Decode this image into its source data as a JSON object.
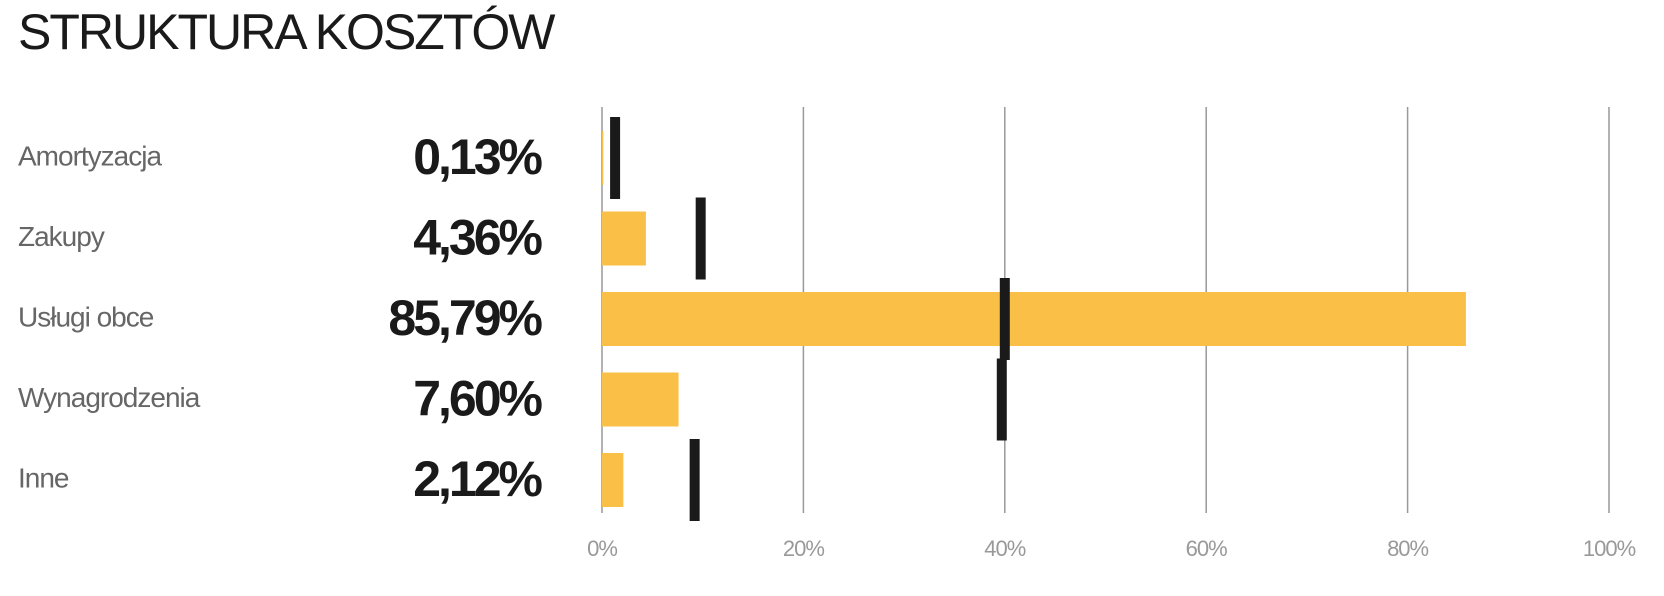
{
  "chart_data": {
    "type": "bullet",
    "title": "STRUKTURA KOSZTÓW",
    "categories": [
      "Amortyzacja",
      "Zakupy",
      "Usługi obce",
      "Wynagrodzenia",
      "Inne"
    ],
    "values": [
      0.13,
      4.36,
      85.79,
      7.6,
      2.12
    ],
    "value_labels": [
      "0,13%",
      "4,36%",
      "85,79%",
      "7,60%",
      "2,12%"
    ],
    "targets": [
      1.3,
      9.8,
      40,
      39.7,
      9.2
    ],
    "color": "#f9bf47",
    "target_color": "#1a1a1a",
    "xlim": [
      0,
      100
    ],
    "xticks": [
      {
        "value": 0,
        "label": "0%"
      },
      {
        "value": 20,
        "label": "20%"
      },
      {
        "value": 40,
        "label": "40%"
      },
      {
        "value": 60,
        "label": "60%"
      },
      {
        "value": 80,
        "label": "80%"
      },
      {
        "value": 100,
        "label": "100%"
      }
    ],
    "grid": true
  }
}
